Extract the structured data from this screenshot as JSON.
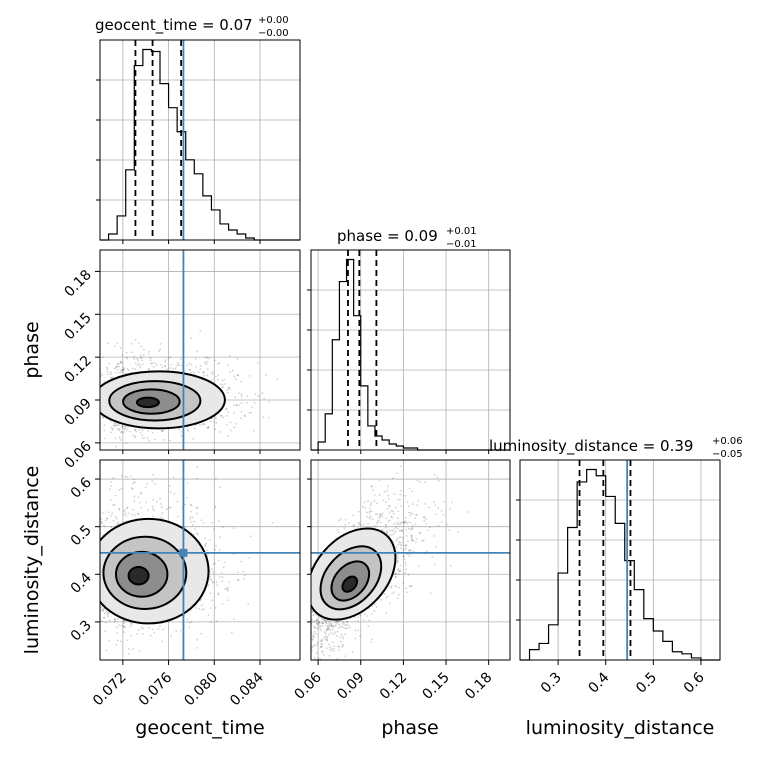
{
  "chart_data": {
    "type": "corner",
    "parameters": [
      "geocent_time",
      "phase",
      "luminosity_distance"
    ],
    "truths": {
      "geocent_time": 0.0773,
      "phase": null,
      "luminosity_distance": 0.445
    },
    "titles": [
      {
        "param": "geocent_time",
        "text": "geocent_time = 0.07",
        "sup": "+0.00",
        "sub": "−0.00"
      },
      {
        "param": "phase",
        "text": "phase = 0.09",
        "sup": "+0.01",
        "sub": "−0.01"
      },
      {
        "param": "luminosity_distance",
        "text": "luminosity_distance = 0.39",
        "sup": "+0.06",
        "sub": "−0.05"
      }
    ],
    "axes": {
      "geocent_time": {
        "range": [
          0.07,
          0.0875
        ],
        "ticks": [
          0.072,
          0.076,
          0.08,
          0.084
        ],
        "tick_labels": [
          "0.072",
          "0.076",
          "0.080",
          "0.084"
        ],
        "label": "geocent_time"
      },
      "phase": {
        "range": [
          0.055,
          0.195
        ],
        "ticks": [
          0.06,
          0.09,
          0.12,
          0.15,
          0.18
        ],
        "tick_labels": [
          "0.06",
          "0.09",
          "0.12",
          "0.15",
          "0.18"
        ],
        "label": "phase"
      },
      "luminosity_distance": {
        "range": [
          0.22,
          0.64
        ],
        "ticks": [
          0.3,
          0.4,
          0.5,
          0.6
        ],
        "tick_labels": [
          "0.3",
          "0.4",
          "0.5",
          "0.6"
        ],
        "label": "luminosity_distance"
      }
    },
    "histograms": {
      "geocent_time": {
        "bin_edges": [
          0.07,
          0.07075,
          0.0715,
          0.07225,
          0.073,
          0.07375,
          0.0745,
          0.07525,
          0.076,
          0.07675,
          0.0775,
          0.07825,
          0.079,
          0.07975,
          0.0805,
          0.08125,
          0.082,
          0.08275,
          0.0835,
          0.08425,
          0.085,
          0.08575,
          0.0865,
          0.08725,
          0.0875
        ],
        "counts": [
          0,
          3,
          12,
          35,
          87,
          95,
          94,
          78,
          66,
          54,
          40,
          33,
          22,
          15,
          8,
          5,
          3,
          1,
          0,
          0,
          0,
          0,
          0,
          0
        ],
        "quantiles": [
          0.0731,
          0.0746,
          0.0771
        ]
      },
      "phase": {
        "bin_edges": [
          0.055,
          0.06,
          0.065,
          0.07,
          0.075,
          0.08,
          0.085,
          0.09,
          0.095,
          0.1,
          0.105,
          0.11,
          0.115,
          0.12,
          0.125,
          0.13,
          0.135,
          0.14,
          0.145,
          0.15,
          0.155,
          0.16,
          0.165,
          0.17,
          0.175,
          0.18,
          0.185,
          0.19,
          0.195
        ],
        "counts": [
          0,
          4,
          18,
          55,
          84,
          95,
          67,
          32,
          12,
          7,
          5,
          3,
          2,
          1,
          1,
          0,
          0,
          0,
          0,
          0,
          0,
          0,
          0,
          0,
          0,
          0,
          0,
          0
        ],
        "quantiles": [
          0.081,
          0.089,
          0.101
        ]
      },
      "luminosity_distance": {
        "bin_edges": [
          0.22,
          0.24,
          0.26,
          0.28,
          0.3,
          0.32,
          0.34,
          0.36,
          0.38,
          0.4,
          0.42,
          0.44,
          0.46,
          0.48,
          0.5,
          0.52,
          0.54,
          0.56,
          0.58,
          0.6,
          0.62,
          0.64
        ],
        "counts": [
          0,
          5,
          8,
          17,
          42,
          64,
          86,
          92,
          89,
          79,
          66,
          48,
          34,
          20,
          14,
          9,
          4,
          3,
          1,
          0,
          0
        ],
        "quantiles": [
          0.345,
          0.395,
          0.452
        ]
      }
    },
    "density": {
      "geocent_time_vs_phase": {
        "peak": [
          0.074,
          0.088
        ]
      },
      "geocent_time_vs_luminosity_distance": {
        "peak": [
          0.0732,
          0.395
        ],
        "truth": [
          0.0773,
          0.445
        ]
      },
      "phase_vs_luminosity_distance": {
        "peak": [
          0.082,
          0.375
        ]
      }
    }
  },
  "colors": {
    "truth": "#4682b4",
    "lines": "#000000",
    "grid": "#b0b0b0"
  }
}
